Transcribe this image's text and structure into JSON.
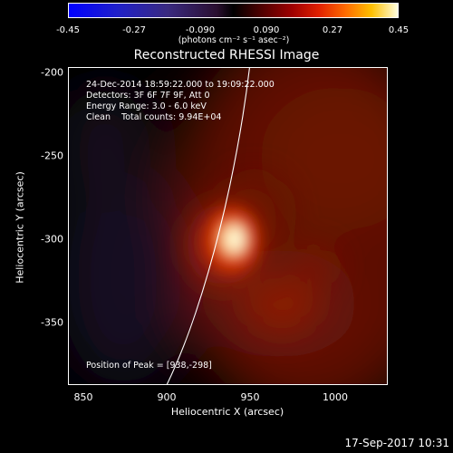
{
  "colorbar": {
    "ticks": [
      "-0.45",
      "-0.27",
      "-0.090",
      "0.090",
      "0.27",
      "0.45"
    ],
    "unit": "(photons cm⁻² s⁻¹ asec⁻²)"
  },
  "title": "Reconstructed RHESSI Image",
  "annotations": {
    "time_range": "24-Dec-2014 18:59:22.000 to 19:09:22.000",
    "detectors": "Detectors: 3F 6F 7F 9F, Att 0",
    "energy": "Energy Range: 3.0 - 6.0 keV",
    "clean": "Clean    Total counts: 9.94E+04",
    "peak": "Position of Peak = [938,-298]"
  },
  "axes": {
    "xlabel": "Heliocentric X (arcsec)",
    "ylabel": "Heliocentric Y (arcsec)",
    "xticks": [
      "850",
      "900",
      "950",
      "1000"
    ],
    "yticks": [
      "-200",
      "-250",
      "-300",
      "-350"
    ]
  },
  "footer": {
    "date": "17-Sep-2017 10:31"
  },
  "colors": {
    "background": "#000000",
    "limb": "#ffffff",
    "source_core": "#ffffc8",
    "source_mid": "#ffb000",
    "emission": "#7a1200"
  }
}
